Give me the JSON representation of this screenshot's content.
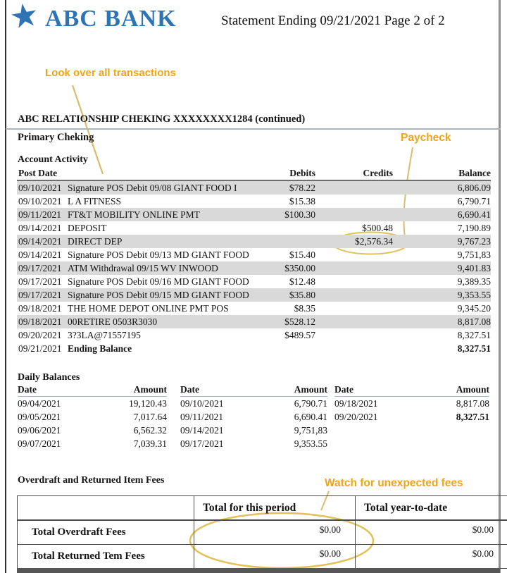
{
  "logo": {
    "icon": "star-icon",
    "glyph": "★"
  },
  "header": {
    "bank_name": "ABC BANK",
    "statement_title": "Statement Ending 09/21/2021 Page 2 of 2"
  },
  "annotations": {
    "transactions_note": "Look over all transactions",
    "paycheck_note": "Paycheck",
    "fees_note": "Watch for unexpected fees"
  },
  "account": {
    "heading": "ABC RELATIONSHIP CHEKING XXXXXXXX1284 (continued)",
    "subheading": "Primary Cheking"
  },
  "account_activity": {
    "section_title": "Account Activity",
    "columns": {
      "post_date": "Post Date",
      "debits": "Debits",
      "credits": "Credits",
      "balance": "Balance"
    },
    "rows": [
      {
        "date": "09/10/2021",
        "description": "Signature POS Debit 09/08 GIANT FOOD I",
        "debit": "$78.22",
        "credit": "",
        "balance": "6,806.09",
        "shaded": true
      },
      {
        "date": "09/10/2021",
        "description": "L A FITNESS",
        "debit": "$15.38",
        "credit": "",
        "balance": "6,790.71",
        "shaded": false
      },
      {
        "date": "09/11/2021",
        "description": "FT&T MOBILITY ONLINE PMT",
        "debit": "$100.30",
        "credit": "",
        "balance": "6,690.41",
        "shaded": true
      },
      {
        "date": "09/14/2021",
        "description": "DEPOSIT",
        "debit": "",
        "credit": "$500.48",
        "balance": "7,190.89",
        "shaded": false
      },
      {
        "date": "09/14/2021",
        "description": "DIRECT DEP",
        "debit": "",
        "credit": "$2,576.34",
        "balance": "9,767.23",
        "shaded": true
      },
      {
        "date": "09/14/2021",
        "description": "Signature POS Debit 09/13 MD GIANT FOOD",
        "debit": "$15.40",
        "credit": "",
        "balance": "9,751,83",
        "shaded": false
      },
      {
        "date": "09/17/2021",
        "description": "ATM Withdrawal  09/15 WV INWOOD",
        "debit": "$350.00",
        "credit": "",
        "balance": "9,401.83",
        "shaded": true
      },
      {
        "date": "09/17/2021",
        "description": "Signature POS Debit 09/16 MD GIANT FOOD",
        "debit": "$12.48",
        "credit": "",
        "balance": "9,389.35",
        "shaded": false
      },
      {
        "date": "09/17/2021",
        "description": "Signature POS Debit 09/15 MD GIANT FOOD",
        "debit": "$35.80",
        "credit": "",
        "balance": "9,353.55",
        "shaded": true
      },
      {
        "date": "09/18/2021",
        "description": "THE HOME DEPOT ONLINE PMT POS",
        "debit": "$8.35",
        "credit": "",
        "balance": "9,345.20",
        "shaded": false
      },
      {
        "date": "09/18/2021",
        "description": "00RETIRE 0503R3030",
        "debit": "$528.12",
        "credit": "",
        "balance": "8,817.08",
        "shaded": true
      },
      {
        "date": "09/20/2021",
        "description": "3?3LA@71557195",
        "debit": "$489.57",
        "credit": "",
        "balance": "8,327.51",
        "shaded": false
      },
      {
        "date": "09/21/2021",
        "description": "Ending Balance",
        "debit": "",
        "credit": "",
        "balance": "8,327.51",
        "shaded": false,
        "bold": true
      }
    ]
  },
  "daily_balances": {
    "section_title": "Daily Balances",
    "date_header": "Date",
    "amount_header": "Amount",
    "groups": [
      [
        {
          "date": "09/04/2021",
          "amount": "19,120.43"
        },
        {
          "date": "09/05/2021",
          "amount": "7,017.64"
        },
        {
          "date": "09/06/2021",
          "amount": "6,562.32"
        },
        {
          "date": "09/07/2021",
          "amount": "7,039.31"
        }
      ],
      [
        {
          "date": "09/10/2021",
          "amount": "6,790.71"
        },
        {
          "date": "09/11/2021",
          "amount": "6,690.41"
        },
        {
          "date": "09/14/2021",
          "amount": "9,751,83"
        },
        {
          "date": "09/17/2021",
          "amount": "9,353.55"
        }
      ],
      [
        {
          "date": "09/18/2021",
          "amount": "8,817.08"
        },
        {
          "date": "09/20/2021",
          "amount": "8,327.51",
          "bold": true
        }
      ]
    ]
  },
  "fees": {
    "section_title": "Overdraft and Returned Item Fees",
    "col_period": "Total for this period",
    "col_ytd": "Total year-to-date",
    "rows": [
      {
        "label": "Total Overdraft Fees",
        "period": "$0.00",
        "ytd": "$0.00"
      },
      {
        "label": "Total Returned Tem Fees",
        "period": "$0.00",
        "ytd": "$0.00"
      }
    ]
  },
  "colors": {
    "brand_blue": "#2e74b5",
    "annotation_orange": "#f2a417",
    "annotation_line": "#d9bd6d",
    "annotation_circle": "#e2c158",
    "row_shade": "#d9d9d9",
    "rule_blue": "#a6b7c4"
  }
}
